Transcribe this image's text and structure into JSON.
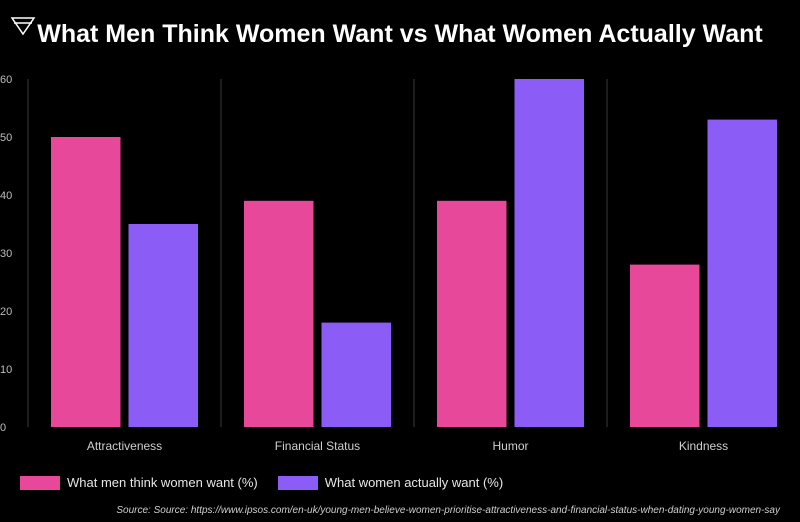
{
  "header": {
    "logo_icon": "triangle-logo-icon",
    "title": "What Men Think Women Want vs What Women Actually Want"
  },
  "chart_data": {
    "type": "bar",
    "categories": [
      "Attractiveness",
      "Financial Status",
      "Humor",
      "Kindness"
    ],
    "series": [
      {
        "name": "What men think women want (%)",
        "color": "#e8489a",
        "values": [
          50,
          39,
          39,
          28
        ]
      },
      {
        "name": "What women actually want (%)",
        "color": "#8b5cf6",
        "values": [
          35,
          18,
          60,
          53
        ]
      }
    ],
    "ylim": [
      0,
      60
    ],
    "yticks": [
      0,
      10,
      20,
      30,
      40,
      50,
      60
    ],
    "grid": false,
    "legend_position": "bottom-left"
  },
  "footer": {
    "source": "Source: Source: https://www.ipsos.com/en-uk/young-men-believe-women-prioritise-attractiveness-and-financial-status-when-dating-young-women-say"
  }
}
